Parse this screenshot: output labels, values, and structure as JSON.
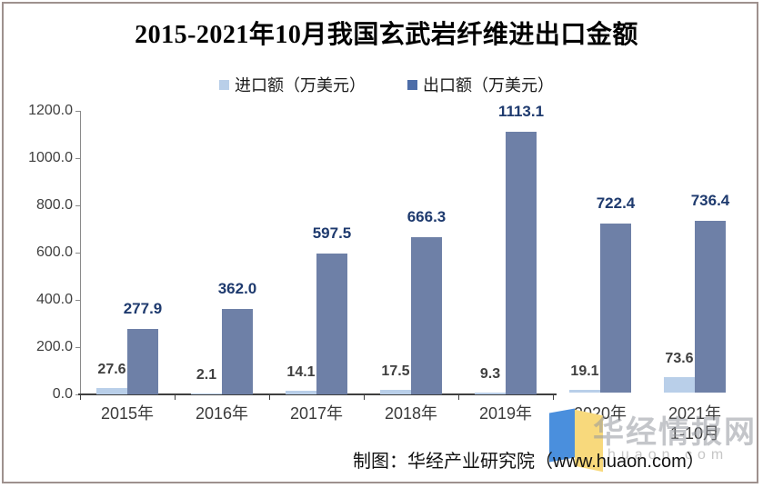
{
  "title": "2015-2021年10月我国玄武岩纤维进出口金额",
  "legend": {
    "items": [
      {
        "label": "进口额（万美元）",
        "swatch_color": "#b9cfe9"
      },
      {
        "label": "出口额（万美元）",
        "swatch_color": "#4d6da8"
      }
    ]
  },
  "footer": {
    "credit": "制图：华经产业研究院（www.huaon.com）"
  },
  "watermark": {
    "brand": "华经情报网",
    "domain": "huaon.com",
    "logo_blue": "#4a8fdd",
    "logo_yellow": "#f8d97c"
  },
  "chart_data": {
    "type": "bar",
    "title": "2015-2021年10月我国玄武岩纤维进出口金额",
    "categories": [
      "2015年",
      "2016年",
      "2017年",
      "2018年",
      "2019年",
      "2020年",
      "2021年\n1-10月"
    ],
    "series": [
      {
        "name": "进口额（万美元）",
        "color": "#b9cfe9",
        "label_color": "#3f3f3f",
        "values": [
          27.6,
          2.1,
          14.1,
          17.5,
          9.3,
          19.1,
          73.6
        ]
      },
      {
        "name": "出口额（万美元）",
        "color": "#6e80a7",
        "label_color": "#1e3a6e",
        "values": [
          277.9,
          362.0,
          597.5,
          666.3,
          1113.1,
          722.4,
          736.4
        ]
      }
    ],
    "xlabel": "",
    "ylabel": "",
    "ylim": [
      0,
      1200
    ],
    "ytick_labels": [
      "0.0",
      "200.0",
      "400.0",
      "600.0",
      "800.0",
      "1000.0",
      "1200.0"
    ],
    "grid": false,
    "legend_position": "top",
    "value_labels_shown": true
  }
}
